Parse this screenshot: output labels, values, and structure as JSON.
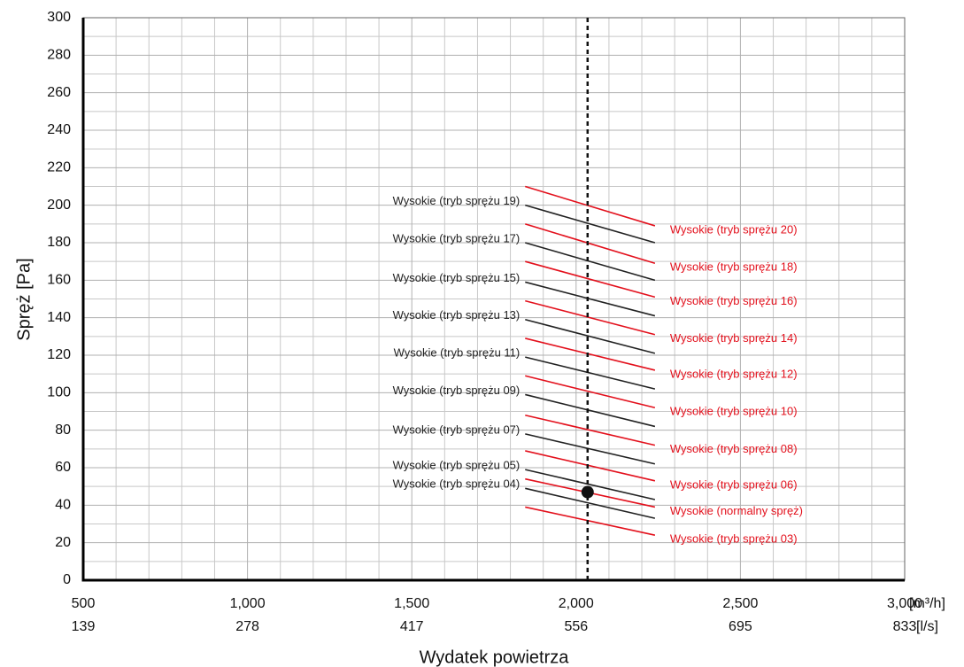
{
  "chart_data": {
    "type": "line",
    "ylabel": "Spręż [Pa]",
    "xlabel": "Wydatek powietrza",
    "xunit": "[m³/h]",
    "x2unit": "[l/s]",
    "xlim": [
      500,
      3000
    ],
    "ylim": [
      0,
      300
    ],
    "xticks": [
      500,
      {
        "value": 1000,
        "label": "1,000"
      },
      {
        "value": 1500,
        "label": "1,500"
      },
      {
        "value": 2000,
        "label": "2,000"
      },
      {
        "value": 2500,
        "label": "2,500"
      },
      {
        "value": 3000,
        "label": "3,000"
      }
    ],
    "x2ticks": [
      {
        "value": 500,
        "label": "139"
      },
      {
        "value": 1000,
        "label": "278"
      },
      {
        "value": 1500,
        "label": "417"
      },
      {
        "value": 2000,
        "label": "556"
      },
      {
        "value": 2500,
        "label": "695"
      },
      {
        "value": 3000,
        "label": "833"
      }
    ],
    "yticks": [
      0,
      20,
      40,
      60,
      80,
      100,
      120,
      140,
      160,
      180,
      200,
      220,
      240,
      260,
      280,
      300
    ],
    "grid": true,
    "series": [
      {
        "name": "Wysokie (tryb sprężu 03)",
        "color": "#e3101c",
        "x": [
          1845,
          2240
        ],
        "values": [
          39,
          24
        ]
      },
      {
        "name": "Wysokie (tryb sprężu 04)",
        "color": "#222222",
        "x": [
          1845,
          2240
        ],
        "values": [
          49,
          33
        ]
      },
      {
        "name": "Wysokie (normalny spręż)",
        "color": "#e3101c",
        "x": [
          1845,
          2240
        ],
        "values": [
          54,
          39
        ]
      },
      {
        "name": "Wysokie (tryb sprężu 05)",
        "color": "#222222",
        "x": [
          1845,
          2240
        ],
        "values": [
          59,
          43
        ]
      },
      {
        "name": "Wysokie (tryb sprężu 06)",
        "color": "#e3101c",
        "x": [
          1845,
          2240
        ],
        "values": [
          69,
          53
        ]
      },
      {
        "name": "Wysokie (tryb sprężu 07)",
        "color": "#222222",
        "x": [
          1845,
          2240
        ],
        "values": [
          78,
          62
        ]
      },
      {
        "name": "Wysokie (tryb sprężu 08)",
        "color": "#e3101c",
        "x": [
          1845,
          2240
        ],
        "values": [
          88,
          72
        ]
      },
      {
        "name": "Wysokie (tryb sprężu 09)",
        "color": "#222222",
        "x": [
          1845,
          2240
        ],
        "values": [
          99,
          82
        ]
      },
      {
        "name": "Wysokie (tryb sprężu 10)",
        "color": "#e3101c",
        "x": [
          1845,
          2240
        ],
        "values": [
          109,
          92
        ]
      },
      {
        "name": "Wysokie (tryb sprężu 11)",
        "color": "#222222",
        "x": [
          1845,
          2240
        ],
        "values": [
          119,
          102
        ]
      },
      {
        "name": "Wysokie (tryb sprężu 12)",
        "color": "#e3101c",
        "x": [
          1845,
          2240
        ],
        "values": [
          129,
          112
        ]
      },
      {
        "name": "Wysokie (tryb sprężu 13)",
        "color": "#222222",
        "x": [
          1845,
          2240
        ],
        "values": [
          139,
          121
        ]
      },
      {
        "name": "Wysokie (tryb sprężu 14)",
        "color": "#e3101c",
        "x": [
          1845,
          2240
        ],
        "values": [
          149,
          131
        ]
      },
      {
        "name": "Wysokie (tryb sprężu 15)",
        "color": "#222222",
        "x": [
          1845,
          2240
        ],
        "values": [
          159,
          141
        ]
      },
      {
        "name": "Wysokie (tryb sprężu 16)",
        "color": "#e3101c",
        "x": [
          1845,
          2240
        ],
        "values": [
          170,
          151
        ]
      },
      {
        "name": "Wysokie (tryb sprężu 17)",
        "color": "#222222",
        "x": [
          1845,
          2240
        ],
        "values": [
          180,
          160
        ]
      },
      {
        "name": "Wysokie (tryb sprężu 18)",
        "color": "#e3101c",
        "x": [
          1845,
          2240
        ],
        "values": [
          190,
          169
        ]
      },
      {
        "name": "Wysokie (tryb sprężu 19)",
        "color": "#222222",
        "x": [
          1845,
          2240
        ],
        "values": [
          200,
          180
        ]
      },
      {
        "name": "Wysokie (tryb sprężu 20)",
        "color": "#e3101c",
        "x": [
          1845,
          2240
        ],
        "values": [
          210,
          189
        ]
      }
    ],
    "operating_point": {
      "x": 2035,
      "y": 47,
      "color": "#111111"
    }
  }
}
